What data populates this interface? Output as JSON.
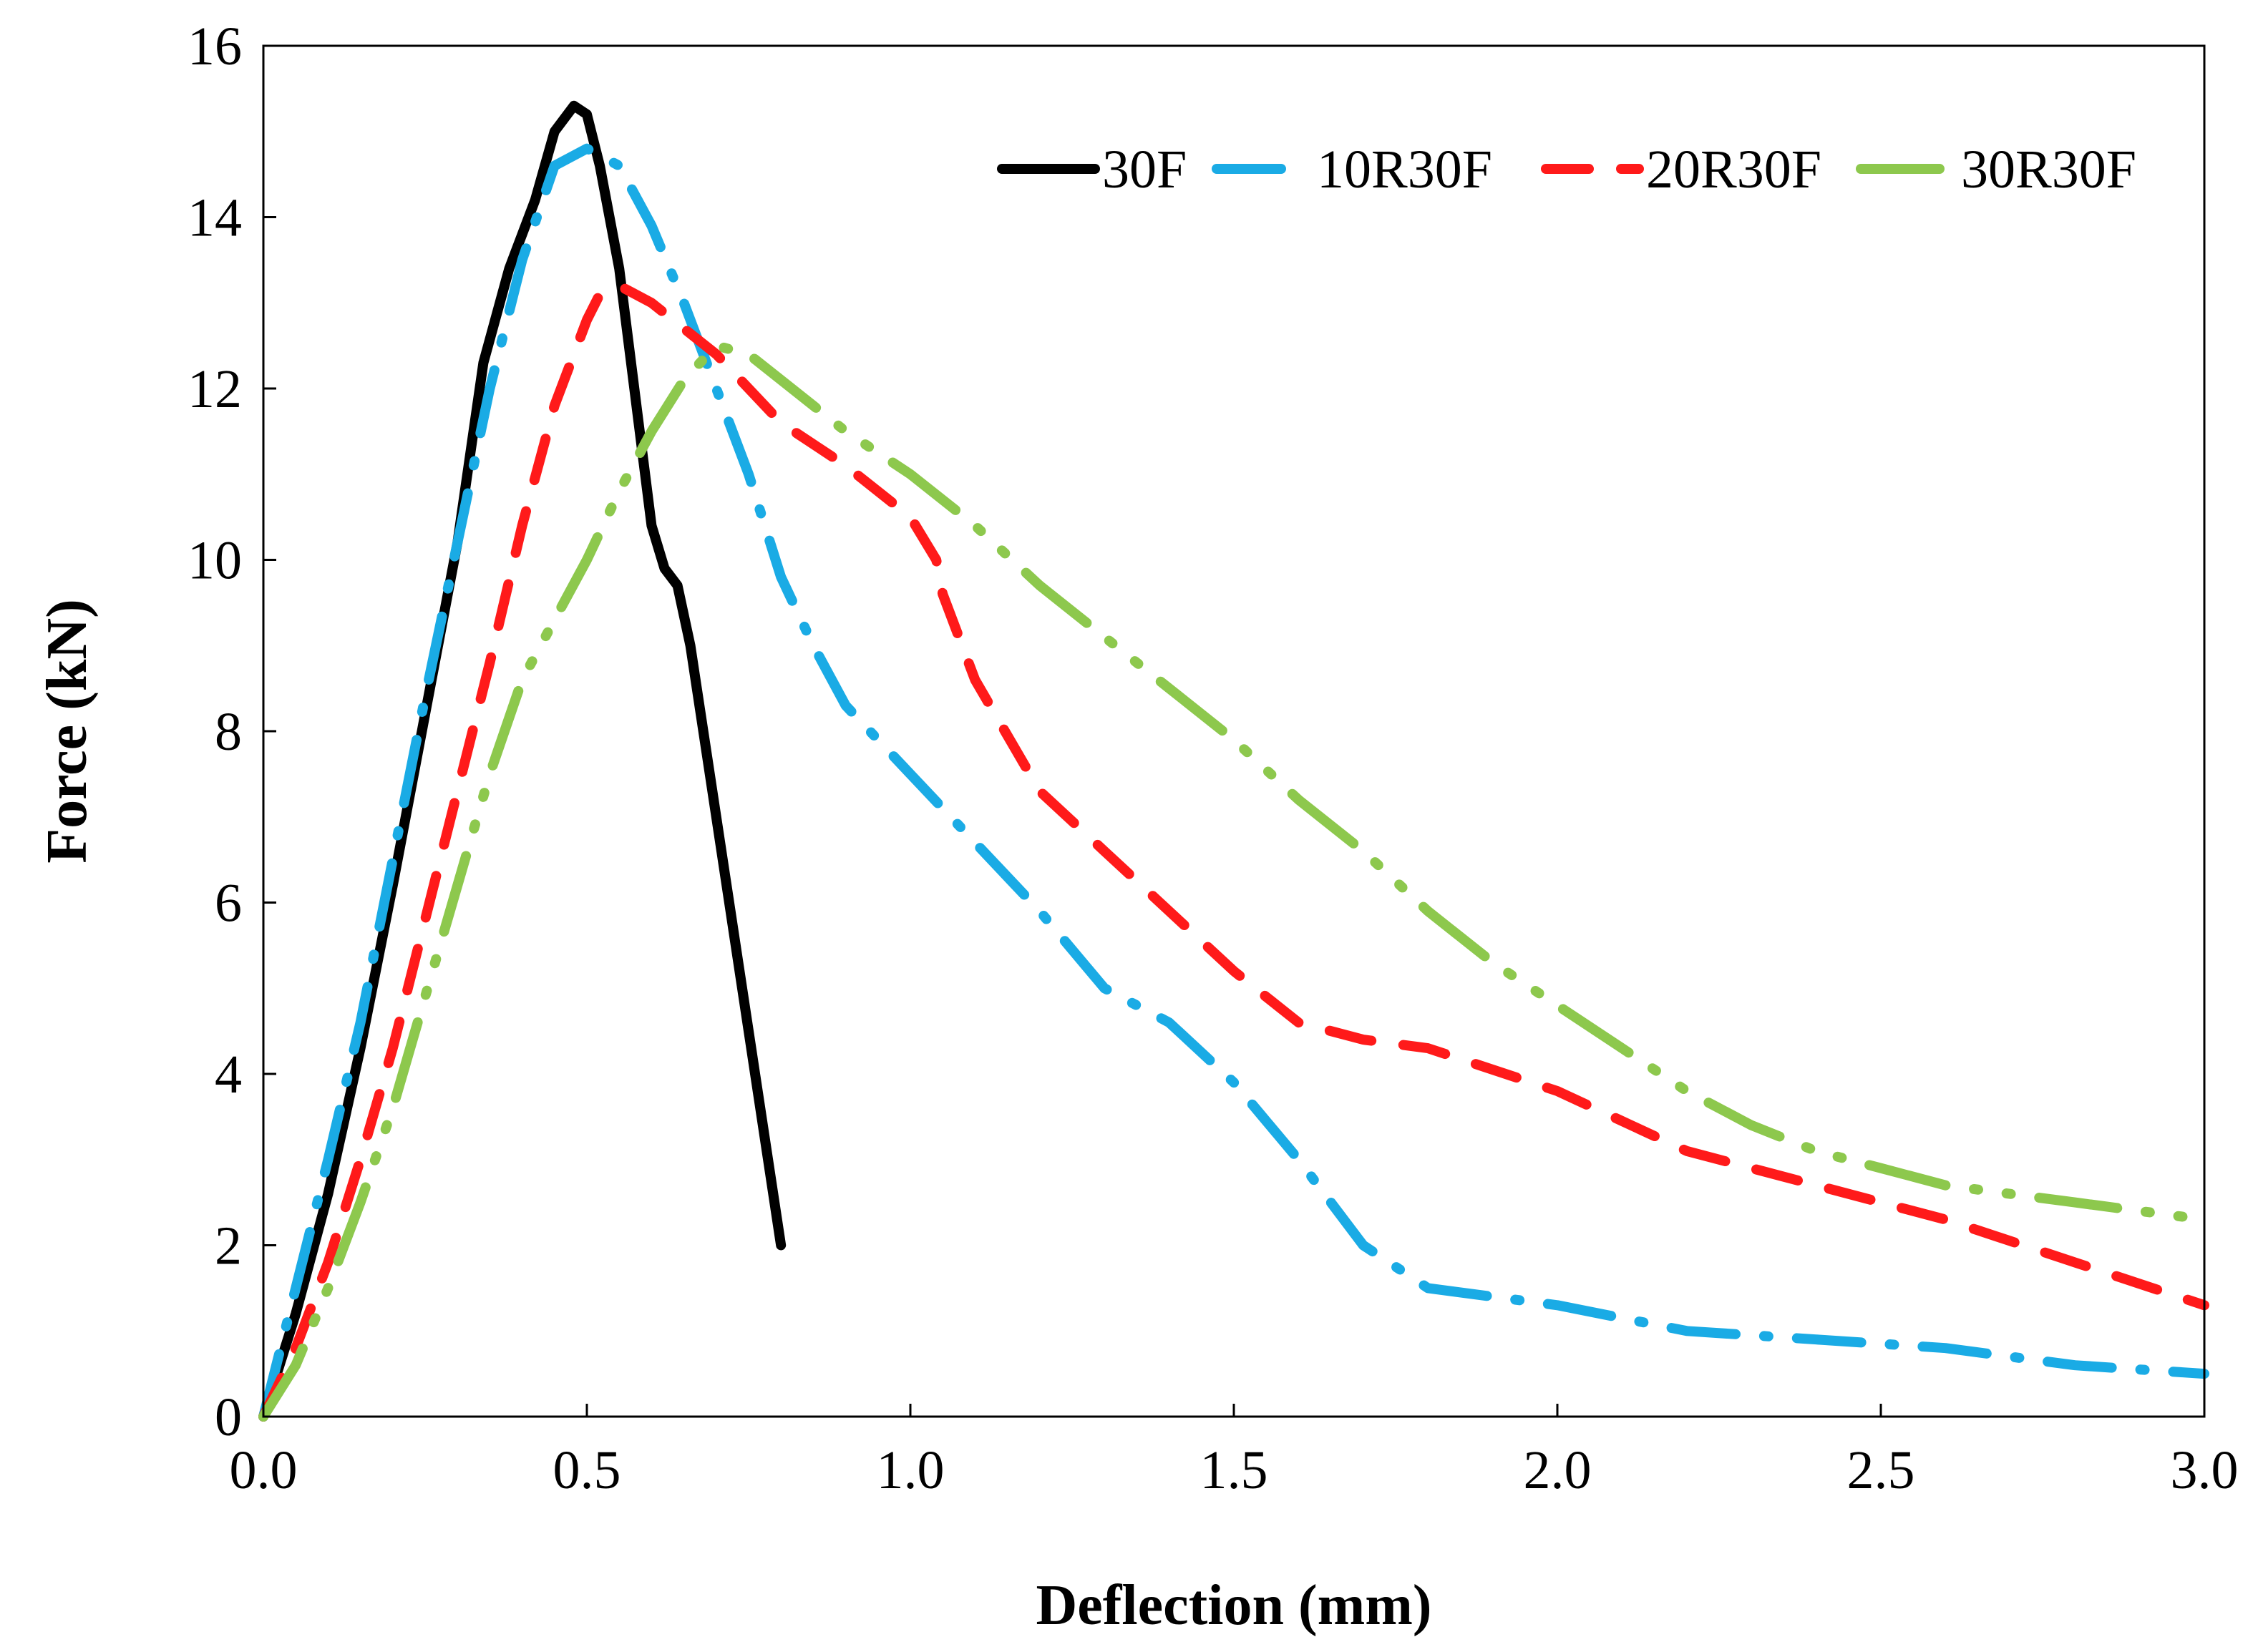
{
  "chart_data": {
    "type": "line",
    "title": "",
    "xlabel": "Deflection (mm)",
    "ylabel": "Force (kN)",
    "xlim": [
      0,
      3.0
    ],
    "ylim": [
      0,
      16
    ],
    "xticks": [
      "0.0",
      "0.5",
      "1.0",
      "1.5",
      "2.0",
      "2.5",
      "3.0"
    ],
    "yticks": [
      "0",
      "2",
      "4",
      "6",
      "8",
      "10",
      "12",
      "14",
      "16"
    ],
    "grid": false,
    "legend_position": "top-right",
    "series": [
      {
        "name": "30F",
        "color": "#000000",
        "dash": "solid",
        "x": [
          0,
          0.05,
          0.1,
          0.15,
          0.2,
          0.25,
          0.3,
          0.34,
          0.38,
          0.42,
          0.45,
          0.48,
          0.5,
          0.52,
          0.55,
          0.58,
          0.6,
          0.62,
          0.64,
          0.66,
          0.7,
          0.75,
          0.8
        ],
        "y": [
          0,
          1.2,
          2.6,
          4.3,
          6.2,
          8.2,
          10.2,
          12.3,
          13.4,
          14.2,
          15.0,
          15.3,
          15.2,
          14.6,
          13.4,
          11.6,
          10.4,
          9.9,
          9.7,
          9.0,
          7.0,
          4.5,
          2.0
        ]
      },
      {
        "name": "10R30F",
        "color": "#1aabe5",
        "dash": "dashdot",
        "x": [
          0,
          0.05,
          0.1,
          0.15,
          0.2,
          0.25,
          0.3,
          0.35,
          0.4,
          0.45,
          0.5,
          0.55,
          0.6,
          0.65,
          0.7,
          0.75,
          0.8,
          0.85,
          0.9,
          1.0,
          1.1,
          1.2,
          1.3,
          1.4,
          1.5,
          1.6,
          1.7,
          1.8,
          2.0,
          2.2,
          2.4,
          2.6,
          2.8,
          3.0
        ],
        "y": [
          0,
          1.5,
          3.0,
          4.6,
          6.5,
          8.4,
          10.2,
          12.0,
          13.5,
          14.6,
          14.8,
          14.6,
          13.9,
          13.0,
          12.0,
          11.0,
          9.8,
          9.0,
          8.3,
          7.5,
          6.7,
          5.9,
          5.0,
          4.6,
          3.9,
          3.0,
          2.0,
          1.5,
          1.3,
          1.0,
          0.9,
          0.8,
          0.6,
          0.5
        ]
      },
      {
        "name": "20R30F",
        "color": "#ff1a1a",
        "dash": "dashed",
        "x": [
          0,
          0.05,
          0.1,
          0.15,
          0.2,
          0.25,
          0.3,
          0.35,
          0.4,
          0.45,
          0.5,
          0.52,
          0.55,
          0.6,
          0.7,
          0.8,
          0.9,
          1.0,
          1.04,
          1.05,
          1.1,
          1.2,
          1.3,
          1.4,
          1.5,
          1.6,
          1.7,
          1.8,
          2.0,
          2.2,
          2.4,
          2.6,
          2.8,
          3.0
        ],
        "y": [
          0,
          0.8,
          1.8,
          3.0,
          4.3,
          5.8,
          7.3,
          8.8,
          10.4,
          11.8,
          12.8,
          13.1,
          13.2,
          13.0,
          12.4,
          11.6,
          11.1,
          10.5,
          10.0,
          9.6,
          8.6,
          7.3,
          6.6,
          5.9,
          5.2,
          4.6,
          4.4,
          4.3,
          3.8,
          3.1,
          2.7,
          2.3,
          1.8,
          1.3
        ]
      },
      {
        "name": "30R30F",
        "color": "#8dc84d",
        "dash": "dashdotdot",
        "x": [
          0,
          0.05,
          0.1,
          0.15,
          0.2,
          0.25,
          0.3,
          0.35,
          0.4,
          0.45,
          0.5,
          0.55,
          0.6,
          0.65,
          0.7,
          0.75,
          0.8,
          0.9,
          1.0,
          1.1,
          1.2,
          1.3,
          1.4,
          1.5,
          1.6,
          1.7,
          1.8,
          1.9,
          2.0,
          2.1,
          2.2,
          2.3,
          2.4,
          2.5,
          2.6,
          2.7,
          2.8,
          2.9,
          3.0
        ],
        "y": [
          0,
          0.6,
          1.5,
          2.5,
          3.6,
          4.9,
          6.2,
          7.5,
          8.6,
          9.3,
          10.0,
          10.8,
          11.5,
          12.1,
          12.5,
          12.4,
          12.1,
          11.5,
          11.0,
          10.4,
          9.7,
          9.1,
          8.5,
          7.9,
          7.2,
          6.6,
          5.9,
          5.3,
          4.8,
          4.3,
          3.8,
          3.4,
          3.1,
          2.9,
          2.7,
          2.6,
          2.5,
          2.4,
          2.3
        ]
      }
    ]
  }
}
